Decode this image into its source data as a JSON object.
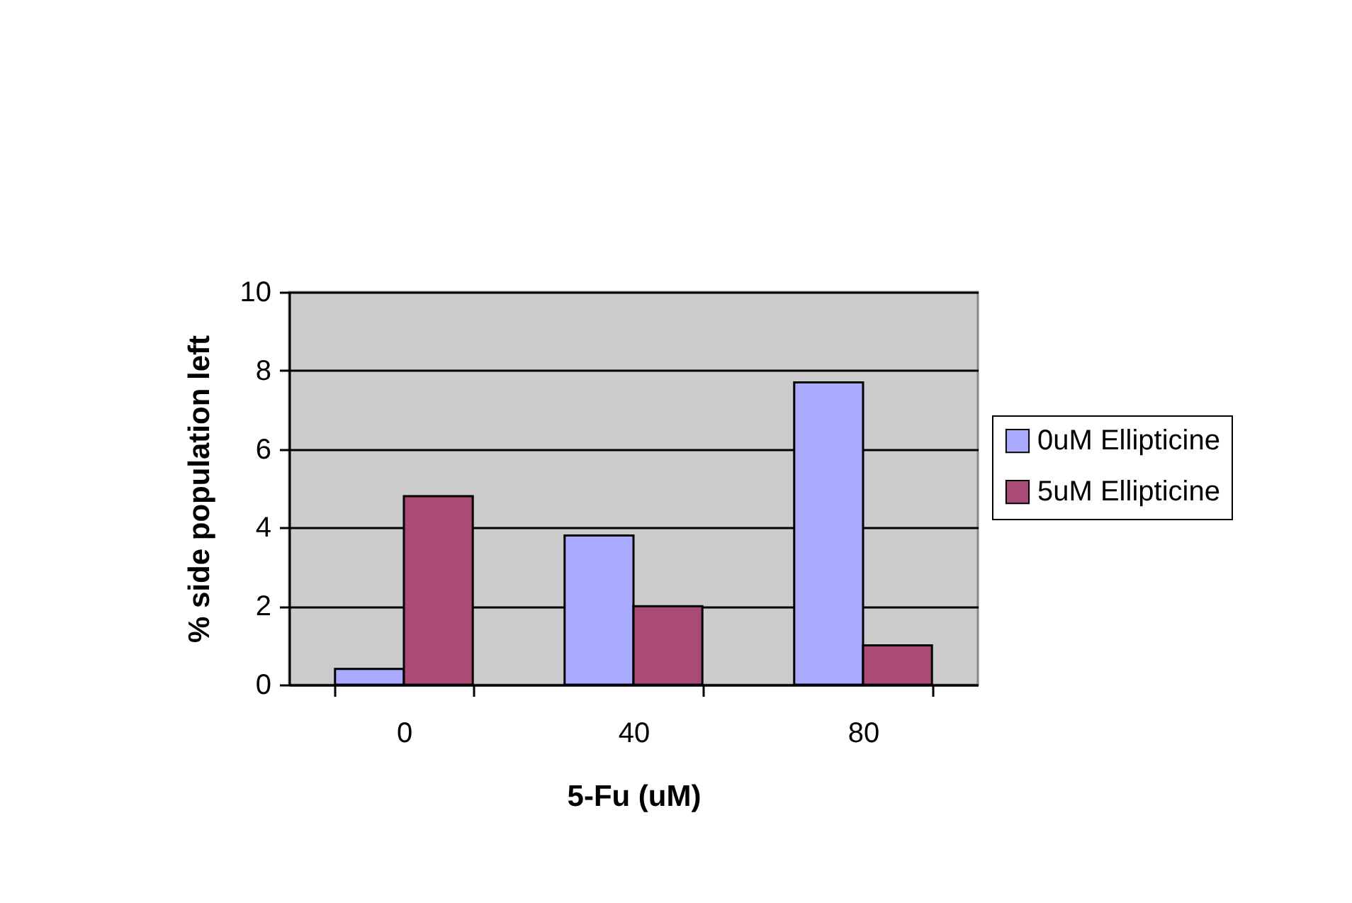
{
  "chart_data": {
    "type": "bar",
    "xlabel": "5-Fu (uM)",
    "ylabel": "% side population left",
    "categories": [
      "0",
      "40",
      "80"
    ],
    "series": [
      {
        "name": "0uM Ellipticine",
        "color": "#aaaaff",
        "values": [
          0.4,
          3.8,
          7.7
        ]
      },
      {
        "name": "5uM Ellipticine",
        "color": "#aa4a77",
        "values": [
          4.8,
          2.0,
          1.0
        ]
      }
    ],
    "ylim": [
      0,
      10
    ],
    "yticks": [
      0,
      2,
      4,
      6,
      8,
      10
    ],
    "grid": "y",
    "legend": "right"
  }
}
